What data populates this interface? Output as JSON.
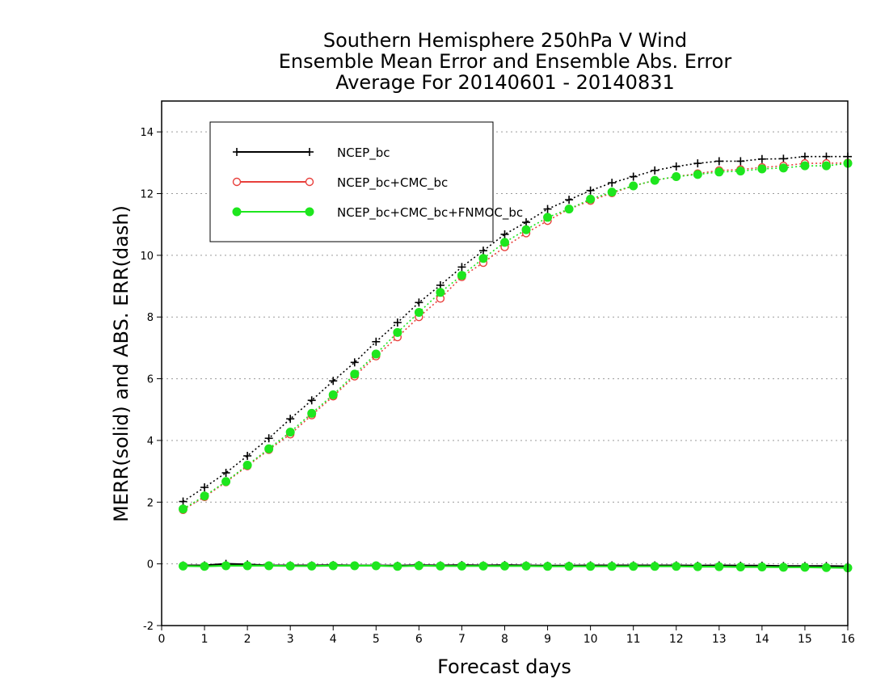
{
  "chart_data": {
    "type": "line",
    "title": [
      "Southern Hemisphere 250hPa V Wind",
      "Ensemble Mean Error and Ensemble Abs. Error",
      "Average For 20140601 - 20140831"
    ],
    "xlabel": "Forecast days",
    "ylabel": "MERR(solid) and ABS. ERR(dash)",
    "xlim": [
      0,
      16
    ],
    "ylim": [
      -2,
      15
    ],
    "xticks": [
      "0",
      "1",
      "2",
      "3",
      "4",
      "5",
      "6",
      "7",
      "8",
      "9",
      "10",
      "11",
      "12",
      "13",
      "14",
      "15",
      "16"
    ],
    "yticks": [
      "-2",
      "0",
      "2",
      "4",
      "6",
      "8",
      "10",
      "12",
      "14"
    ],
    "grid": "horizontal dotted",
    "legend_placement": "top-left",
    "x": [
      0.5,
      1,
      1.5,
      2,
      2.5,
      3,
      3.5,
      4,
      4.5,
      5,
      5.5,
      6,
      6.5,
      7,
      7.5,
      8,
      8.5,
      9,
      9.5,
      10,
      10.5,
      11,
      11.5,
      12,
      12.5,
      13,
      13.5,
      14,
      14.5,
      15,
      15.5,
      16
    ],
    "series": [
      {
        "name": "NCEP_bc",
        "color": "#000000",
        "marker": "plus",
        "abs_err": [
          2.02,
          2.48,
          2.95,
          3.5,
          4.07,
          4.7,
          5.3,
          5.93,
          6.53,
          7.2,
          7.82,
          8.47,
          9.03,
          9.62,
          10.15,
          10.68,
          11.07,
          11.5,
          11.8,
          12.1,
          12.35,
          12.55,
          12.75,
          12.88,
          12.98,
          13.05,
          13.05,
          13.12,
          13.13,
          13.2,
          13.2,
          13.2
        ],
        "mean_err": [
          -0.05,
          -0.05,
          0.0,
          -0.02,
          -0.05,
          -0.05,
          -0.05,
          -0.04,
          -0.05,
          -0.05,
          -0.06,
          -0.04,
          -0.05,
          -0.04,
          -0.05,
          -0.04,
          -0.05,
          -0.06,
          -0.06,
          -0.05,
          -0.05,
          -0.05,
          -0.05,
          -0.05,
          -0.06,
          -0.05,
          -0.06,
          -0.06,
          -0.07,
          -0.07,
          -0.07,
          -0.08
        ]
      },
      {
        "name": "NCEP_bc+CMC_bc",
        "color": "#e8403c",
        "marker": "open-circle",
        "abs_err": [
          1.75,
          2.17,
          2.65,
          3.17,
          3.7,
          4.2,
          4.82,
          5.43,
          6.08,
          6.73,
          7.35,
          8.0,
          8.6,
          9.3,
          9.76,
          10.27,
          10.72,
          11.12,
          11.5,
          11.77,
          12.02,
          12.25,
          12.43,
          12.55,
          12.65,
          12.75,
          12.78,
          12.85,
          12.9,
          12.98,
          12.98,
          13.0
        ]
      },
      {
        "name": "NCEP_bc+CMC_bc+FNMOC_bc",
        "color": "#1ee61e",
        "marker": "filled-circle",
        "abs_err": [
          1.78,
          2.2,
          2.67,
          3.2,
          3.73,
          4.27,
          4.88,
          5.48,
          6.15,
          6.8,
          7.5,
          8.15,
          8.8,
          9.35,
          9.9,
          10.42,
          10.83,
          11.23,
          11.5,
          11.82,
          12.05,
          12.25,
          12.43,
          12.55,
          12.62,
          12.7,
          12.73,
          12.8,
          12.83,
          12.9,
          12.9,
          12.98
        ],
        "mean_err": [
          -0.07,
          -0.08,
          -0.06,
          -0.06,
          -0.06,
          -0.07,
          -0.07,
          -0.06,
          -0.06,
          -0.06,
          -0.08,
          -0.06,
          -0.07,
          -0.07,
          -0.07,
          -0.07,
          -0.07,
          -0.08,
          -0.08,
          -0.08,
          -0.08,
          -0.08,
          -0.08,
          -0.08,
          -0.09,
          -0.09,
          -0.1,
          -0.1,
          -0.11,
          -0.11,
          -0.12,
          -0.13
        ]
      }
    ]
  }
}
